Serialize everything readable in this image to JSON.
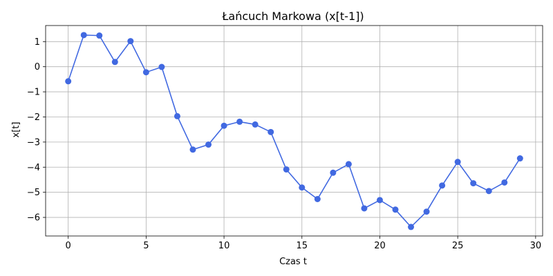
{
  "chart_data": {
    "type": "line",
    "title": "Łańcuch Markowa (x[t-1])",
    "xlabel": "Czas t",
    "ylabel": "x[t]",
    "xlim": [
      -1.45,
      30.45
    ],
    "ylim": [
      -6.74,
      1.64
    ],
    "xticks": [
      0,
      5,
      10,
      15,
      20,
      25,
      30
    ],
    "yticks": [
      -6,
      -5,
      -4,
      -3,
      -2,
      -1,
      0,
      1
    ],
    "grid": true,
    "color": "#4169e1",
    "series": [
      {
        "x": [
          0,
          1,
          2,
          3,
          4,
          5,
          6,
          7,
          8,
          9,
          10,
          11,
          12,
          13,
          14,
          15,
          16,
          17,
          18,
          19,
          20,
          21,
          22,
          23,
          24,
          25,
          26,
          27,
          28,
          29
        ],
        "values": [
          -0.58,
          1.26,
          1.24,
          0.19,
          1.02,
          -0.22,
          -0.01,
          -1.97,
          -3.3,
          -3.1,
          -2.35,
          -2.19,
          -2.3,
          -2.6,
          -4.09,
          -4.81,
          -5.27,
          -4.22,
          -3.88,
          -5.64,
          -5.31,
          -5.69,
          -6.38,
          -5.77,
          -4.73,
          -3.79,
          -4.64,
          -4.95,
          -4.61,
          -3.65
        ]
      }
    ]
  }
}
